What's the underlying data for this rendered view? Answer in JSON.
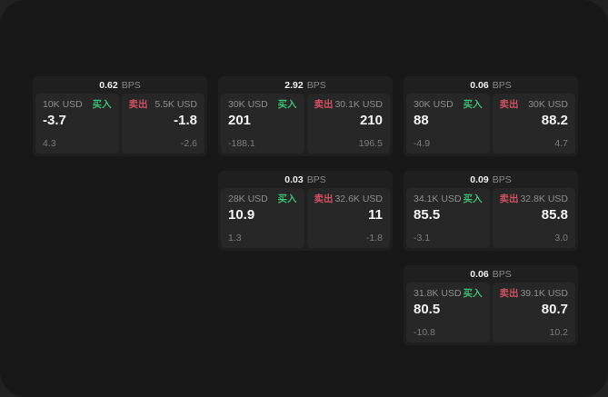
{
  "labels": {
    "bps": "BPS",
    "buy": "买入",
    "sell": "卖出"
  },
  "colors": {
    "buy_green": "#3fbf73",
    "sell_red": "#cf5263",
    "surface": "#181818",
    "card": "#1f1f1f",
    "tile": "#272727"
  },
  "cards": [
    {
      "bps": "0.62",
      "buy": {
        "amount": "10K USD",
        "value": "-3.7",
        "sub": "4.3"
      },
      "sell": {
        "amount": "5.5K USD",
        "value": "-1.8",
        "sub": "-2.6"
      }
    },
    {
      "bps": "2.92",
      "buy": {
        "amount": "30K USD",
        "value": "201",
        "sub": "-188.1"
      },
      "sell": {
        "amount": "30.1K USD",
        "value": "210",
        "sub": "196.5"
      }
    },
    {
      "bps": "0.06",
      "buy": {
        "amount": "30K USD",
        "value": "88",
        "sub": "-4.9"
      },
      "sell": {
        "amount": "30K USD",
        "value": "88.2",
        "sub": "4.7"
      }
    },
    {
      "bps": "0.03",
      "buy": {
        "amount": "28K USD",
        "value": "10.9",
        "sub": "1.3"
      },
      "sell": {
        "amount": "32.6K USD",
        "value": "11",
        "sub": "-1.8"
      }
    },
    {
      "bps": "0.09",
      "buy": {
        "amount": "34.1K USD",
        "value": "85.5",
        "sub": "-3.1"
      },
      "sell": {
        "amount": "32.8K USD",
        "value": "85.8",
        "sub": "3.0"
      }
    },
    {
      "bps": "0.06",
      "buy": {
        "amount": "31.8K USD",
        "value": "80.5",
        "sub": "-10.8"
      },
      "sell": {
        "amount": "39.1K USD",
        "value": "80.7",
        "sub": "10.2"
      }
    }
  ]
}
